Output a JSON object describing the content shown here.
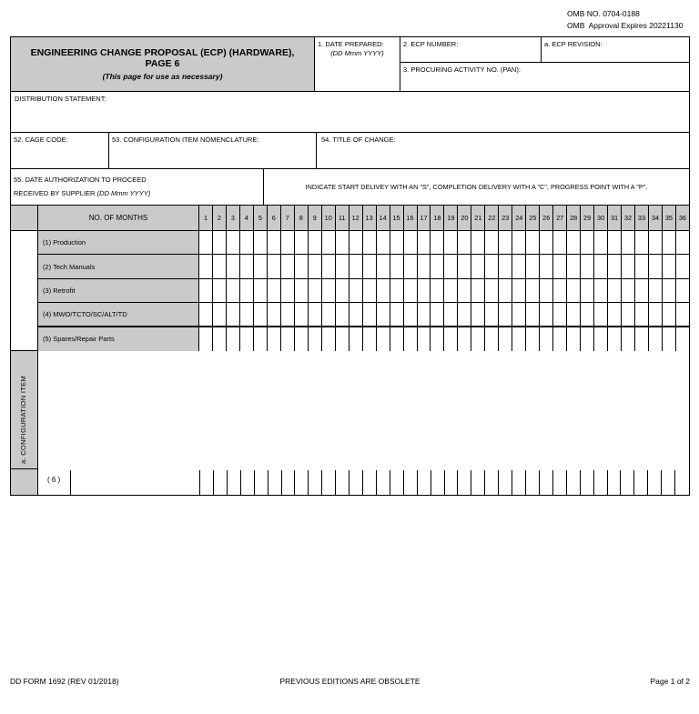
{
  "omb": {
    "line1": "OMB NO. 0704-0188",
    "line2": "OMB  Approval Expires 20221130"
  },
  "header": {
    "title": "ENGINEERING CHANGE PROPOSAL (ECP) (HARDWARE), PAGE 6",
    "subtitle": "(This page for use as necessary)",
    "field1_label": "1.  DATE PREPARED:",
    "field1_hint": "(DD Mmm YYYY)",
    "field2_label": "2.  ECP NUMBER:",
    "fielda_label": "a.  ECP REVISION:",
    "field3_label": "3.  PROCURING ACTIVITY NO. (PAN):"
  },
  "distribution": {
    "label": "DISTRIBUTION STATEMENT:"
  },
  "block52": {
    "label": "52.  CAGE CODE:"
  },
  "block53": {
    "label": "53.  CONFIGURATION ITEM NOMENCLATURE:"
  },
  "block54": {
    "label": "54.  TITLE OF CHANGE:"
  },
  "block55": {
    "label_line1": "55. DATE AUTHORIZATION TO PROCEED",
    "label_line2": "RECEIVED BY SUPPLIER",
    "label_line2_hint": "(DD Mmm YYYY)",
    "instruction": "INDICATE START DELIVEY WITH AN \"S\", COMPLETION DELIVERY WITH A \"C\", PROGRESS POINT WITH A \"P\"."
  },
  "schedule": {
    "months_header": "NO. OF MONTHS",
    "months": [
      "1",
      "2",
      "3",
      "4",
      "5",
      "6",
      "7",
      "8",
      "9",
      "10",
      "11",
      "12",
      "13",
      "14",
      "15",
      "16",
      "17",
      "18",
      "19",
      "20",
      "21",
      "22",
      "23",
      "24",
      "25",
      "26",
      "27",
      "28",
      "29",
      "30",
      "31",
      "32",
      "33",
      "34",
      "35",
      "36"
    ],
    "rows": [
      "(1) Production",
      "(2)  Tech Manuals",
      "(3)  Retrofit",
      "(4)  MWO/TCTO/SC/ALT/TD",
      "(5)  Spares/Repair Parts"
    ],
    "config_item_label": "a.  CONFIGURATION ITEM",
    "row6_label": "( 6 )"
  },
  "footer": {
    "left": "DD FORM 1692 (REV 01/2018)",
    "center": "PREVIOUS EDITIONS ARE OBSOLETE",
    "right": "Page 1 of 2"
  },
  "colors": {
    "cell_gray": "#cacaca",
    "border": "#000000",
    "page_background": "#ffffff"
  }
}
